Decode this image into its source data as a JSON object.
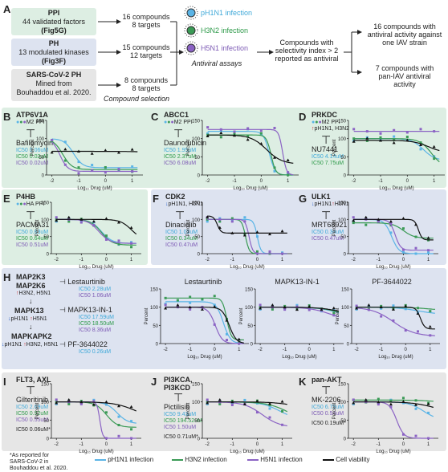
{
  "panelA": {
    "label": "A",
    "sources": [
      {
        "title": "PPI",
        "line1": "44 validated factors",
        "ref": "(Fig5G)"
      },
      {
        "title": "PH",
        "line1": "13 modulated kinases",
        "ref": "(Fig3F)"
      },
      {
        "title": "SARS-CoV-2 PH",
        "line1": "Mined from",
        "ref": "Bouhaddou et al. 2020."
      }
    ],
    "compounds": [
      {
        "l1": "16 compounds",
        "l2": "8 targets"
      },
      {
        "l1": "15 compounds",
        "l2": "12 targets"
      },
      {
        "l1": "8 compounds",
        "l2": "8 targets"
      }
    ],
    "compound_selection": "Compound selection",
    "infections": [
      "pH1N1 infection",
      "H3N2 infection",
      "H5N1 infection"
    ],
    "antiviral_assays": "Antiviral assays",
    "selectivity": [
      "Compounds with",
      "selectivity index > 2",
      "reported as antiviral"
    ],
    "outcome1": [
      "16 compounds with",
      "antiviral activity against",
      "one IAV strain"
    ],
    "outcome2": [
      "7 compounds with",
      "pan-IAV antiviral",
      "activity"
    ]
  },
  "panels": [
    {
      "label": "B",
      "target": "ATP6V1A",
      "tag": "M2 PPI",
      "drug": "Bafilomycin",
      "ic50": [
        "IC50 0.06uM",
        "IC50 0.02uM",
        "IC50 0.02uM"
      ]
    },
    {
      "label": "C",
      "target": "ABCC1",
      "tag": "M2 PPI",
      "drug": "Daunorubicin",
      "ic50": [
        "IC50 1.95uM",
        "IC50 2.37uM",
        "IC50 6.08uM"
      ]
    },
    {
      "label": "D",
      "target": "PRKDC",
      "tag": "M2 PPI",
      "tag2": "pH1N1, H3N2",
      "drug": "NU7441",
      "ic50": [
        "IC50 4.14uM",
        "IC50 7.75uM"
      ]
    },
    {
      "label": "E",
      "target": "P4HB",
      "tag": "HA PPI",
      "drug": "PACMA31",
      "ic50": [
        "IC50 0.63uM",
        "IC50 0.64uM",
        "IC50 0.51uM"
      ]
    },
    {
      "label": "F",
      "target": "CDK2",
      "tag": "pH1N1, H5N1",
      "drug": "Dinaciclib",
      "ic50": [
        "IC50 1.01uM",
        "IC50 0.34uM",
        "IC50 0.47uM"
      ]
    },
    {
      "label": "G",
      "target": "ULK1",
      "tag": "pH1N1",
      "tag2": "H5N1",
      "drug": "MRT68921",
      "ic50": [
        "IC50 0.34uM",
        "IC50 0.47uM"
      ]
    },
    {
      "label": "I",
      "target": "FLT3, AXL",
      "drug": "Gilteritinib",
      "ic50": [
        "IC50 2.69uM",
        "IC50 0.92uM",
        "IC50 0.55uM"
      ],
      "reported": "IC50 0.06uM*"
    },
    {
      "label": "J",
      "target": "PI3KCA, PI3KCD",
      "drug": "Pictilisib",
      "ic50": [
        "IC50 9.43uM",
        "IC50 194.52uM",
        "IC50 1.50uM"
      ],
      "reported": "IC50 0.71uM*"
    },
    {
      "label": "K",
      "target": "pan-AKT",
      "drug": "MK-2206",
      "ic50": [
        "IC50 6.79uM",
        "IC50 0.54uM"
      ],
      "reported": "IC50 0.19uM*"
    }
  ],
  "panelH": {
    "label": "H",
    "pathway": [
      "MAP2K3",
      "MAP2K6",
      "MAPK13",
      "MAPKAPK2"
    ],
    "tag_top": "H3N2, H5N1",
    "tag_mid1": "pH1N1",
    "tag_mid2": "H5N1",
    "tag_bot1": "pH1N1",
    "tag_bot2": "H3N2, H5N1",
    "drugs": [
      {
        "name": "Lestaurtinib",
        "ic50": [
          "IC50 2.28uM",
          "IC50 1.06uM"
        ]
      },
      {
        "name": "MAPK13-IN-1",
        "ic50": [
          "IC50 17.59uM",
          "IC50 18.50uM",
          "IC50 8.36uM"
        ]
      },
      {
        "name": "PF-3644022",
        "ic50": [
          "IC50 0.26uM"
        ]
      }
    ],
    "plot_titles": [
      "Lestaurtinib",
      "MAPK13-IN-1",
      "PF-3644022"
    ]
  },
  "axes": {
    "ylabel": "Percent",
    "xlabel": "Log₁₀ Drug (uM)",
    "yticks": [
      "0",
      "50",
      "100",
      "150"
    ],
    "xticks": [
      "-2",
      "-1",
      "0",
      "1"
    ]
  },
  "footnote": [
    "*As reported for",
    "SARS-CoV-2 in",
    "Bouhaddou et al. 2020."
  ],
  "legend": [
    "pH1N1 infection",
    "H3N2 infection",
    "H5N1 infection",
    "Cell viability"
  ],
  "colors": {
    "ph1n1": "#5ab4e6",
    "h3n2": "#3a9a55",
    "h5n1": "#8b63c4",
    "viability": "#111111"
  }
}
